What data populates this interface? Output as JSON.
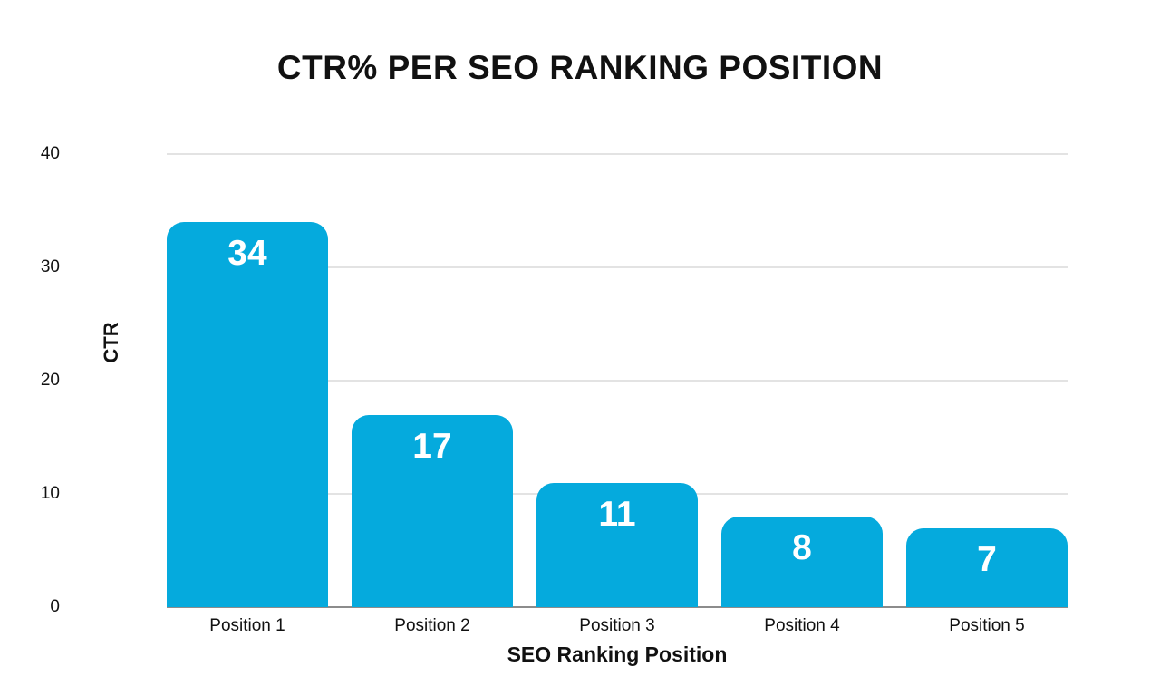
{
  "page": {
    "background": "#ffffff"
  },
  "chart_data": {
    "type": "bar",
    "title": "CTR% PER SEO RANKING POSITION",
    "xlabel": "SEO Ranking Position",
    "ylabel": "CTR",
    "categories": [
      "Position 1",
      "Position 2",
      "Position 3",
      "Position 4",
      "Position 5"
    ],
    "values": [
      34,
      17,
      11,
      8,
      7
    ],
    "value_labels": [
      "34",
      "17",
      "11",
      "8",
      "7"
    ],
    "ylim": [
      0,
      40
    ],
    "yticks": [
      0,
      10,
      20,
      30,
      40
    ],
    "grid": true,
    "legend": false,
    "colors": {
      "bar": "#05aadd",
      "value_label": "#ffffff",
      "gridline": "#e3e3e3",
      "axis_line": "#8c8c8c",
      "text": "#111111"
    }
  }
}
